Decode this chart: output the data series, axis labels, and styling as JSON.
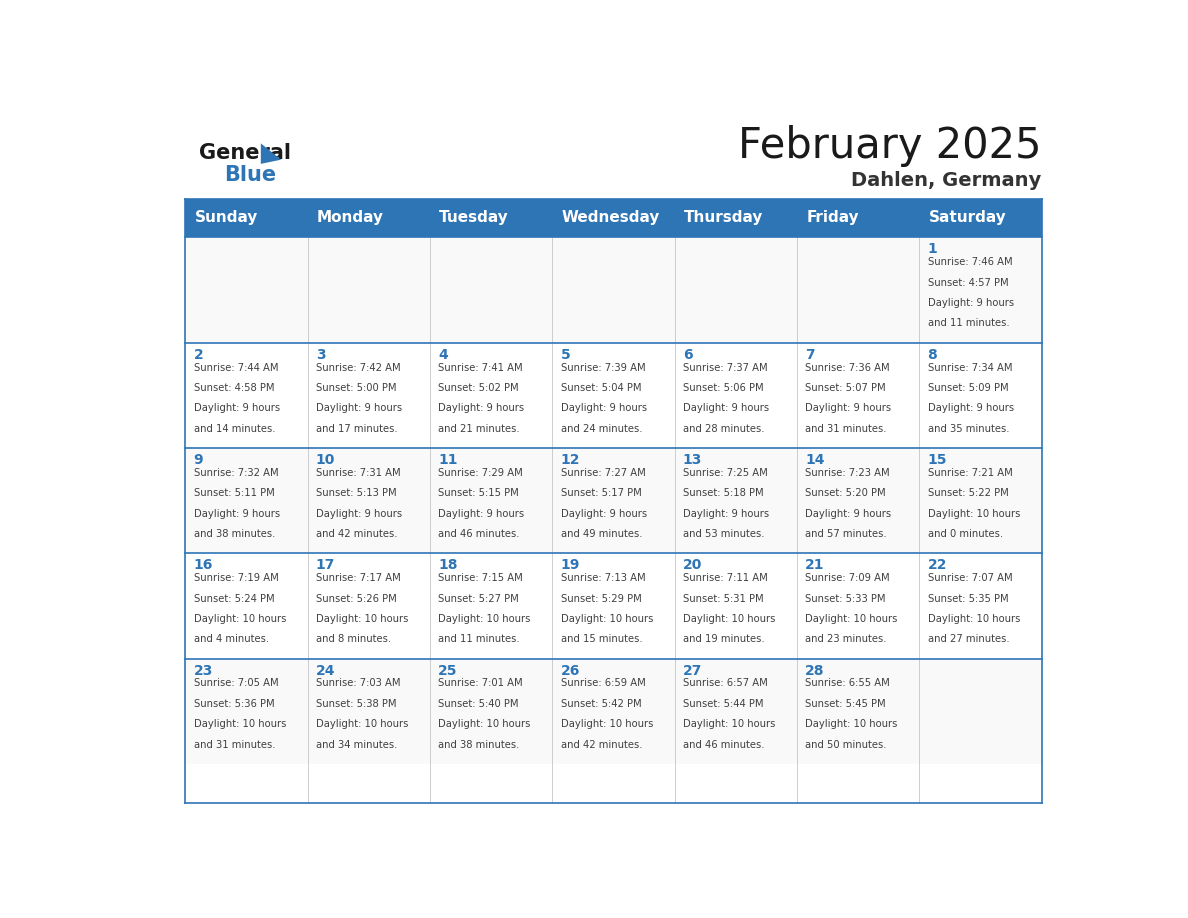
{
  "title": "February 2025",
  "subtitle": "Dahlen, Germany",
  "days_of_week": [
    "Sunday",
    "Monday",
    "Tuesday",
    "Wednesday",
    "Thursday",
    "Friday",
    "Saturday"
  ],
  "header_bg": "#2E75B6",
  "header_text": "#FFFFFF",
  "cell_bg_even": "#F9F9F9",
  "cell_bg_odd": "#FFFFFF",
  "day_number_color": "#2E75B6",
  "text_color": "#404040",
  "line_color": "#2E75B6",
  "weeks": [
    [
      {
        "day": null,
        "info": null
      },
      {
        "day": null,
        "info": null
      },
      {
        "day": null,
        "info": null
      },
      {
        "day": null,
        "info": null
      },
      {
        "day": null,
        "info": null
      },
      {
        "day": null,
        "info": null
      },
      {
        "day": 1,
        "info": "Sunrise: 7:46 AM\nSunset: 4:57 PM\nDaylight: 9 hours\nand 11 minutes."
      }
    ],
    [
      {
        "day": 2,
        "info": "Sunrise: 7:44 AM\nSunset: 4:58 PM\nDaylight: 9 hours\nand 14 minutes."
      },
      {
        "day": 3,
        "info": "Sunrise: 7:42 AM\nSunset: 5:00 PM\nDaylight: 9 hours\nand 17 minutes."
      },
      {
        "day": 4,
        "info": "Sunrise: 7:41 AM\nSunset: 5:02 PM\nDaylight: 9 hours\nand 21 minutes."
      },
      {
        "day": 5,
        "info": "Sunrise: 7:39 AM\nSunset: 5:04 PM\nDaylight: 9 hours\nand 24 minutes."
      },
      {
        "day": 6,
        "info": "Sunrise: 7:37 AM\nSunset: 5:06 PM\nDaylight: 9 hours\nand 28 minutes."
      },
      {
        "day": 7,
        "info": "Sunrise: 7:36 AM\nSunset: 5:07 PM\nDaylight: 9 hours\nand 31 minutes."
      },
      {
        "day": 8,
        "info": "Sunrise: 7:34 AM\nSunset: 5:09 PM\nDaylight: 9 hours\nand 35 minutes."
      }
    ],
    [
      {
        "day": 9,
        "info": "Sunrise: 7:32 AM\nSunset: 5:11 PM\nDaylight: 9 hours\nand 38 minutes."
      },
      {
        "day": 10,
        "info": "Sunrise: 7:31 AM\nSunset: 5:13 PM\nDaylight: 9 hours\nand 42 minutes."
      },
      {
        "day": 11,
        "info": "Sunrise: 7:29 AM\nSunset: 5:15 PM\nDaylight: 9 hours\nand 46 minutes."
      },
      {
        "day": 12,
        "info": "Sunrise: 7:27 AM\nSunset: 5:17 PM\nDaylight: 9 hours\nand 49 minutes."
      },
      {
        "day": 13,
        "info": "Sunrise: 7:25 AM\nSunset: 5:18 PM\nDaylight: 9 hours\nand 53 minutes."
      },
      {
        "day": 14,
        "info": "Sunrise: 7:23 AM\nSunset: 5:20 PM\nDaylight: 9 hours\nand 57 minutes."
      },
      {
        "day": 15,
        "info": "Sunrise: 7:21 AM\nSunset: 5:22 PM\nDaylight: 10 hours\nand 0 minutes."
      }
    ],
    [
      {
        "day": 16,
        "info": "Sunrise: 7:19 AM\nSunset: 5:24 PM\nDaylight: 10 hours\nand 4 minutes."
      },
      {
        "day": 17,
        "info": "Sunrise: 7:17 AM\nSunset: 5:26 PM\nDaylight: 10 hours\nand 8 minutes."
      },
      {
        "day": 18,
        "info": "Sunrise: 7:15 AM\nSunset: 5:27 PM\nDaylight: 10 hours\nand 11 minutes."
      },
      {
        "day": 19,
        "info": "Sunrise: 7:13 AM\nSunset: 5:29 PM\nDaylight: 10 hours\nand 15 minutes."
      },
      {
        "day": 20,
        "info": "Sunrise: 7:11 AM\nSunset: 5:31 PM\nDaylight: 10 hours\nand 19 minutes."
      },
      {
        "day": 21,
        "info": "Sunrise: 7:09 AM\nSunset: 5:33 PM\nDaylight: 10 hours\nand 23 minutes."
      },
      {
        "day": 22,
        "info": "Sunrise: 7:07 AM\nSunset: 5:35 PM\nDaylight: 10 hours\nand 27 minutes."
      }
    ],
    [
      {
        "day": 23,
        "info": "Sunrise: 7:05 AM\nSunset: 5:36 PM\nDaylight: 10 hours\nand 31 minutes."
      },
      {
        "day": 24,
        "info": "Sunrise: 7:03 AM\nSunset: 5:38 PM\nDaylight: 10 hours\nand 34 minutes."
      },
      {
        "day": 25,
        "info": "Sunrise: 7:01 AM\nSunset: 5:40 PM\nDaylight: 10 hours\nand 38 minutes."
      },
      {
        "day": 26,
        "info": "Sunrise: 6:59 AM\nSunset: 5:42 PM\nDaylight: 10 hours\nand 42 minutes."
      },
      {
        "day": 27,
        "info": "Sunrise: 6:57 AM\nSunset: 5:44 PM\nDaylight: 10 hours\nand 46 minutes."
      },
      {
        "day": 28,
        "info": "Sunrise: 6:55 AM\nSunset: 5:45 PM\nDaylight: 10 hours\nand 50 minutes."
      },
      {
        "day": null,
        "info": null
      }
    ]
  ]
}
